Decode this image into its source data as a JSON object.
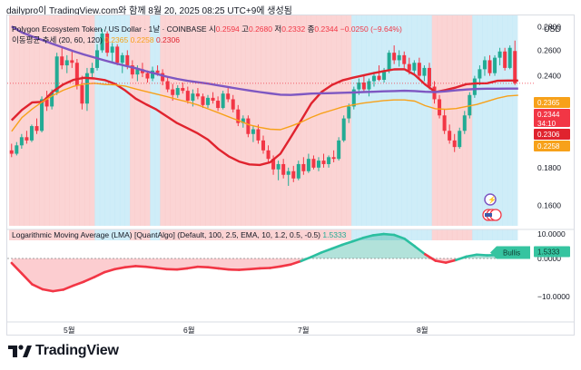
{
  "header": {
    "source_line": "dailypro이 TradingView.com와 함께 8월 20, 2025 08:25 UTC+9에 생성됨"
  },
  "legend": {
    "symbol_line_prefix": "Polygon Ecosystem Token / US Dollar · 1날 · COINBASE",
    "o_label": "시",
    "o_value": "0.2594",
    "h_label": "고",
    "h_value": "0.2680",
    "l_label": "저",
    "l_value": "0.2332",
    "c_label": "종",
    "c_value": "0.2344",
    "change": "−0.0250 (−9.64%)",
    "ma_label": "이동평균 추세 (20, 60, 120)",
    "ma_values": [
      "0.2365",
      "0.2258",
      "0.2306"
    ],
    "lma_label": "Logarithmic Moving Average (LMA) [QuantAlgo] (Default, 100, 2.5, EMA, 10, 1.2, 0.5, -0.5)",
    "lma_value": "1.5333"
  },
  "price_axis": {
    "currency": "USD",
    "ticks": [
      "0.2800",
      "0.2600",
      "0.2400",
      "0.2200",
      "0.2000",
      "0.1800",
      "0.1600"
    ],
    "badges": [
      {
        "text": "0.2365",
        "color": "#f7a11a"
      },
      {
        "text": "0.2344",
        "color": "#f23645"
      },
      {
        "text": "34:10",
        "color": "#f23645"
      },
      {
        "text": "0.2306",
        "color": "#e0232e"
      },
      {
        "text": "0.2258",
        "color": "#f7a11a"
      }
    ]
  },
  "osc_axis": {
    "ticks": [
      "10.0000",
      "0.0000",
      "−10.0000"
    ],
    "badge_label": "Bullis",
    "badge_value": "1.5333"
  },
  "time_axis": {
    "labels": [
      "5월",
      "6월",
      "7월",
      "8월"
    ]
  },
  "brand": {
    "name": "TradingView"
  },
  "colors": {
    "up": "#22ab94",
    "down": "#f23645",
    "ma20": "#e0232e",
    "ma60": "#f7a11a",
    "ma120": "#7e57c2",
    "bull_zone": "#bfe7f5",
    "bear_zone": "#f9c5c5"
  },
  "chart_data": {
    "type": "candlestick",
    "symbol": "Polygon Ecosystem Token / US Dollar",
    "interval": "1날",
    "exchange": "COINBASE",
    "price_scale": "log",
    "ylim": [
      0.15,
      0.29
    ],
    "x_labels": [
      "5월",
      "6월",
      "7월",
      "8월"
    ],
    "candles": [
      [
        0.19,
        0.194,
        0.186,
        0.188
      ],
      [
        0.188,
        0.195,
        0.187,
        0.193
      ],
      [
        0.193,
        0.2,
        0.191,
        0.198
      ],
      [
        0.198,
        0.202,
        0.194,
        0.196
      ],
      [
        0.196,
        0.206,
        0.195,
        0.205
      ],
      [
        0.205,
        0.21,
        0.2,
        0.202
      ],
      [
        0.202,
        0.225,
        0.201,
        0.223
      ],
      [
        0.223,
        0.229,
        0.215,
        0.218
      ],
      [
        0.218,
        0.23,
        0.216,
        0.228
      ],
      [
        0.228,
        0.258,
        0.226,
        0.255
      ],
      [
        0.255,
        0.262,
        0.245,
        0.248
      ],
      [
        0.248,
        0.256,
        0.242,
        0.252
      ],
      [
        0.252,
        0.26,
        0.246,
        0.25
      ],
      [
        0.25,
        0.253,
        0.23,
        0.233
      ],
      [
        0.233,
        0.24,
        0.216,
        0.22
      ],
      [
        0.22,
        0.246,
        0.215,
        0.242
      ],
      [
        0.242,
        0.25,
        0.238,
        0.246
      ],
      [
        0.246,
        0.265,
        0.244,
        0.26
      ],
      [
        0.26,
        0.278,
        0.258,
        0.274
      ],
      [
        0.274,
        0.276,
        0.255,
        0.258
      ],
      [
        0.258,
        0.266,
        0.25,
        0.263
      ],
      [
        0.263,
        0.265,
        0.248,
        0.25
      ],
      [
        0.25,
        0.258,
        0.242,
        0.256
      ],
      [
        0.256,
        0.26,
        0.245,
        0.248
      ],
      [
        0.248,
        0.252,
        0.238,
        0.241
      ],
      [
        0.241,
        0.248,
        0.236,
        0.245
      ],
      [
        0.245,
        0.25,
        0.239,
        0.242
      ],
      [
        0.242,
        0.244,
        0.235,
        0.238
      ],
      [
        0.238,
        0.247,
        0.236,
        0.244
      ],
      [
        0.244,
        0.248,
        0.24,
        0.242
      ],
      [
        0.242,
        0.245,
        0.233,
        0.236
      ],
      [
        0.236,
        0.239,
        0.228,
        0.23
      ],
      [
        0.23,
        0.234,
        0.222,
        0.226
      ],
      [
        0.226,
        0.233,
        0.224,
        0.231
      ],
      [
        0.231,
        0.235,
        0.227,
        0.229
      ],
      [
        0.229,
        0.232,
        0.22,
        0.222
      ],
      [
        0.222,
        0.23,
        0.218,
        0.227
      ],
      [
        0.227,
        0.231,
        0.223,
        0.225
      ],
      [
        0.225,
        0.227,
        0.217,
        0.219
      ],
      [
        0.219,
        0.226,
        0.217,
        0.224
      ],
      [
        0.224,
        0.228,
        0.22,
        0.222
      ],
      [
        0.222,
        0.225,
        0.215,
        0.217
      ],
      [
        0.217,
        0.229,
        0.216,
        0.227
      ],
      [
        0.227,
        0.231,
        0.221,
        0.223
      ],
      [
        0.223,
        0.226,
        0.214,
        0.216
      ],
      [
        0.216,
        0.219,
        0.205,
        0.207
      ],
      [
        0.207,
        0.212,
        0.204,
        0.21
      ],
      [
        0.21,
        0.212,
        0.198,
        0.2
      ],
      [
        0.2,
        0.205,
        0.195,
        0.203
      ],
      [
        0.203,
        0.206,
        0.194,
        0.196
      ],
      [
        0.196,
        0.199,
        0.188,
        0.19
      ],
      [
        0.19,
        0.193,
        0.183,
        0.185
      ],
      [
        0.185,
        0.187,
        0.176,
        0.179
      ],
      [
        0.179,
        0.184,
        0.173,
        0.182
      ],
      [
        0.182,
        0.185,
        0.174,
        0.176
      ],
      [
        0.176,
        0.18,
        0.17,
        0.178
      ],
      [
        0.178,
        0.181,
        0.172,
        0.174
      ],
      [
        0.174,
        0.184,
        0.173,
        0.182
      ],
      [
        0.182,
        0.186,
        0.176,
        0.178
      ],
      [
        0.178,
        0.188,
        0.177,
        0.185
      ],
      [
        0.185,
        0.187,
        0.179,
        0.18
      ],
      [
        0.18,
        0.186,
        0.178,
        0.184
      ],
      [
        0.184,
        0.188,
        0.18,
        0.182
      ],
      [
        0.182,
        0.187,
        0.18,
        0.186
      ],
      [
        0.186,
        0.19,
        0.183,
        0.185
      ],
      [
        0.185,
        0.198,
        0.184,
        0.196
      ],
      [
        0.196,
        0.212,
        0.195,
        0.21
      ],
      [
        0.21,
        0.22,
        0.207,
        0.218
      ],
      [
        0.218,
        0.232,
        0.216,
        0.23
      ],
      [
        0.23,
        0.238,
        0.226,
        0.235
      ],
      [
        0.235,
        0.24,
        0.228,
        0.23
      ],
      [
        0.23,
        0.238,
        0.225,
        0.236
      ],
      [
        0.236,
        0.243,
        0.232,
        0.24
      ],
      [
        0.24,
        0.248,
        0.236,
        0.237
      ],
      [
        0.237,
        0.246,
        0.235,
        0.244
      ],
      [
        0.244,
        0.26,
        0.242,
        0.258
      ],
      [
        0.258,
        0.264,
        0.249,
        0.252
      ],
      [
        0.252,
        0.26,
        0.247,
        0.256
      ],
      [
        0.256,
        0.259,
        0.246,
        0.249
      ],
      [
        0.249,
        0.254,
        0.241,
        0.244
      ],
      [
        0.244,
        0.252,
        0.24,
        0.25
      ],
      [
        0.25,
        0.254,
        0.238,
        0.24
      ],
      [
        0.24,
        0.248,
        0.236,
        0.246
      ],
      [
        0.246,
        0.25,
        0.23,
        0.232
      ],
      [
        0.232,
        0.236,
        0.22,
        0.223
      ],
      [
        0.223,
        0.226,
        0.21,
        0.212
      ],
      [
        0.212,
        0.216,
        0.2,
        0.202
      ],
      [
        0.202,
        0.206,
        0.194,
        0.196
      ],
      [
        0.196,
        0.2,
        0.189,
        0.192
      ],
      [
        0.192,
        0.204,
        0.191,
        0.202
      ],
      [
        0.202,
        0.215,
        0.2,
        0.212
      ],
      [
        0.212,
        0.228,
        0.21,
        0.226
      ],
      [
        0.226,
        0.24,
        0.224,
        0.238
      ],
      [
        0.238,
        0.248,
        0.233,
        0.245
      ],
      [
        0.245,
        0.255,
        0.24,
        0.252
      ],
      [
        0.252,
        0.256,
        0.24,
        0.242
      ],
      [
        0.242,
        0.256,
        0.24,
        0.254
      ],
      [
        0.254,
        0.262,
        0.248,
        0.259
      ],
      [
        0.259,
        0.262,
        0.244,
        0.246
      ],
      [
        0.246,
        0.264,
        0.245,
        0.262
      ],
      [
        0.2594,
        0.268,
        0.2332,
        0.2344
      ]
    ],
    "indicator_ma": {
      "name": "이동평균 추세 (20, 60, 120)",
      "series": [
        {
          "name": "20",
          "values": [
            0.2088,
            0.2157,
            0.2208,
            0.2212,
            0.2285,
            0.2336,
            0.237,
            0.2385,
            0.238,
            0.2368,
            0.234,
            0.2292,
            0.2235,
            0.2195,
            0.216,
            0.2114,
            0.207,
            0.2037,
            0.2004,
            0.1965,
            0.1908,
            0.1865,
            0.1835,
            0.1818,
            0.1815,
            0.183,
            0.188,
            0.1979,
            0.2086,
            0.2202,
            0.2283,
            0.2333,
            0.2366,
            0.2386,
            0.2403,
            0.242,
            0.2436,
            0.2449,
            0.245,
            0.2407,
            0.2336,
            0.2281,
            0.2296,
            0.2314,
            0.2338,
            0.2344,
            0.2345,
            0.2363,
            0.2365,
            0.2365
          ]
        },
        {
          "name": "60",
          "values": [
            0.2017,
            0.2106,
            0.2163,
            0.2213,
            0.2258,
            0.2294,
            0.2322,
            0.2339,
            0.2345,
            0.2337,
            0.2333,
            0.2324,
            0.2303,
            0.2285,
            0.2267,
            0.2249,
            0.2229,
            0.2212,
            0.2191,
            0.2164,
            0.2138,
            0.2111,
            0.2085,
            0.2058,
            0.2042,
            0.203,
            0.2027,
            0.2049,
            0.2075,
            0.2107,
            0.2134,
            0.2155,
            0.2177,
            0.2191,
            0.2203,
            0.2212,
            0.2221,
            0.2225,
            0.2225,
            0.2217,
            0.2186,
            0.2165,
            0.2161,
            0.2166,
            0.218,
            0.2194,
            0.2215,
            0.2237,
            0.2253,
            0.2258
          ]
        },
        {
          "name": "120",
          "values": [
            0.2802,
            0.2749,
            0.2714,
            0.2684,
            0.2652,
            0.2622,
            0.2592,
            0.2566,
            0.2542,
            0.2519,
            0.2497,
            0.2477,
            0.2458,
            0.2435,
            0.2415,
            0.2394,
            0.2377,
            0.2363,
            0.2352,
            0.2342,
            0.2329,
            0.2316,
            0.2304,
            0.2292,
            0.2281,
            0.2271,
            0.2262,
            0.226,
            0.2265,
            0.227,
            0.2272,
            0.2273,
            0.2276,
            0.2278,
            0.2281,
            0.2283,
            0.2286,
            0.2288,
            0.229,
            0.2288,
            0.2283,
            0.2281,
            0.2286,
            0.2293,
            0.2299,
            0.2303,
            0.2305,
            0.2305,
            0.2306,
            0.2306
          ]
        }
      ]
    },
    "indicator_lma": {
      "name": "Logarithmic Moving Average (LMA) [QuantAlgo]",
      "params": "Default, 100, 2.5, EMA, 10, 1.2, 0.5, -0.5",
      "yticks": [
        10.0,
        0.0,
        -10.0
      ],
      "values": [
        -1.2,
        -4.0,
        -6.8,
        -8.1,
        -8.6,
        -8.2,
        -7.1,
        -6.1,
        -4.9,
        -3.6,
        -2.8,
        -2.3,
        -2.0,
        -2.2,
        -2.5,
        -2.8,
        -2.9,
        -2.6,
        -2.2,
        -2.3,
        -2.6,
        -2.9,
        -3.0,
        -2.8,
        -2.6,
        -2.5,
        -2.1,
        -1.6,
        -0.7,
        0.4,
        1.6,
        2.6,
        3.6,
        4.5,
        5.4,
        6.1,
        6.4,
        6.2,
        5.2,
        3.2,
        1.1,
        -0.6,
        -1.1,
        -0.4,
        0.5,
        1.0,
        0.8,
        0.9,
        1.3,
        1.5333
      ],
      "last_value": 1.5333,
      "state": "Bullis"
    }
  }
}
